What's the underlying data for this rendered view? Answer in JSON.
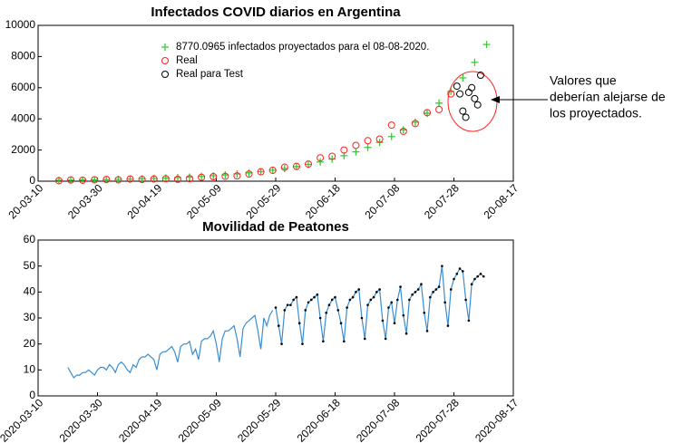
{
  "chart_data": [
    {
      "type": "scatter",
      "title": "Infectados COVID diarios en Argentina",
      "xlim": [
        "2020-03-10",
        "2020-08-17"
      ],
      "xticks": [
        {
          "value": "2020-03-10",
          "label": "20-03-10"
        },
        {
          "value": "2020-03-30",
          "label": "20-03-30"
        },
        {
          "value": "2020-04-19",
          "label": "20-04-19"
        },
        {
          "value": "2020-05-09",
          "label": "20-05-09"
        },
        {
          "value": "2020-05-29",
          "label": "20-05-29"
        },
        {
          "value": "2020-06-18",
          "label": "20-06-18"
        },
        {
          "value": "2020-07-08",
          "label": "20-07-08"
        },
        {
          "value": "2020-07-28",
          "label": "20-07-28"
        },
        {
          "value": "2020-08-17",
          "label": "20-08-17"
        }
      ],
      "ylim": [
        0,
        10000
      ],
      "yticks": [
        0,
        2000,
        4000,
        6000,
        8000,
        10000
      ],
      "series": [
        {
          "name": "8770.0965 infectados proyectados para el 08-08-2020.",
          "color": "#33cc33",
          "marker": "+",
          "x": [
            "2020-03-17",
            "2020-03-21",
            "2020-03-25",
            "2020-03-29",
            "2020-04-02",
            "2020-04-06",
            "2020-04-10",
            "2020-04-14",
            "2020-04-18",
            "2020-04-22",
            "2020-04-26",
            "2020-04-30",
            "2020-05-04",
            "2020-05-08",
            "2020-05-12",
            "2020-05-16",
            "2020-05-20",
            "2020-05-24",
            "2020-05-28",
            "2020-06-01",
            "2020-06-05",
            "2020-06-09",
            "2020-06-13",
            "2020-06-17",
            "2020-06-21",
            "2020-06-25",
            "2020-06-29",
            "2020-07-03",
            "2020-07-07",
            "2020-07-11",
            "2020-07-15",
            "2020-07-19",
            "2020-07-23",
            "2020-07-27",
            "2020-07-31",
            "2020-08-04",
            "2020-08-08"
          ],
          "values": [
            57,
            66,
            75,
            87,
            100,
            115,
            132,
            152,
            174,
            201,
            231,
            265,
            305,
            351,
            404,
            464,
            534,
            614,
            707,
            813,
            935,
            1075,
            1236,
            1422,
            1636,
            1881,
            2164,
            2489,
            2863,
            3293,
            3788,
            4356,
            5011,
            5763,
            6629,
            7625,
            8770.0965
          ]
        },
        {
          "name": "Real",
          "color": "#ff2020",
          "marker": "o",
          "x": [
            "2020-03-17",
            "2020-03-21",
            "2020-03-25",
            "2020-03-29",
            "2020-04-02",
            "2020-04-06",
            "2020-04-10",
            "2020-04-14",
            "2020-04-18",
            "2020-04-22",
            "2020-04-26",
            "2020-04-30",
            "2020-05-04",
            "2020-05-08",
            "2020-05-12",
            "2020-05-16",
            "2020-05-20",
            "2020-05-24",
            "2020-05-28",
            "2020-06-01",
            "2020-06-05",
            "2020-06-09",
            "2020-06-13",
            "2020-06-17",
            "2020-06-21",
            "2020-06-25",
            "2020-06-29",
            "2020-07-03",
            "2020-07-07",
            "2020-07-11",
            "2020-07-15",
            "2020-07-19",
            "2020-07-23",
            "2020-07-27"
          ],
          "values": [
            30,
            80,
            60,
            90,
            110,
            90,
            140,
            110,
            140,
            150,
            120,
            160,
            250,
            290,
            310,
            340,
            460,
            600,
            700,
            900,
            950,
            1100,
            1500,
            1600,
            2000,
            2300,
            2600,
            2700,
            3600,
            3200,
            3700,
            4400,
            4600,
            5600
          ]
        },
        {
          "name": "Real para Test",
          "color": "#000000",
          "marker": "o",
          "x": [
            "2020-07-29",
            "2020-07-30",
            "2020-07-31",
            "2020-08-01",
            "2020-08-02",
            "2020-08-03",
            "2020-08-04",
            "2020-08-05",
            "2020-08-06"
          ],
          "values": [
            6100,
            5600,
            4500,
            4100,
            5700,
            6000,
            5300,
            4900,
            6800
          ]
        }
      ],
      "annotation": [
        "Valores que",
        "deberían alejarse de",
        "los proyectados."
      ]
    },
    {
      "type": "line",
      "title": "Movilidad de Peatones",
      "xlim": [
        "2020-03-10",
        "2020-08-17"
      ],
      "xticks": [
        "2020-03-10",
        "2020-03-30",
        "2020-04-19",
        "2020-05-09",
        "2020-05-29",
        "2020-06-18",
        "2020-07-08",
        "2020-07-28",
        "2020-08-17"
      ],
      "ylim": [
        0,
        60
      ],
      "yticks": [
        0,
        10,
        20,
        30,
        40,
        50,
        60
      ],
      "series": [
        {
          "color": "#3a8ed0",
          "x": [
            "2020-03-20",
            "2020-03-21",
            "2020-03-22",
            "2020-03-23",
            "2020-03-24",
            "2020-03-25",
            "2020-03-26",
            "2020-03-27",
            "2020-03-28",
            "2020-03-29",
            "2020-03-30",
            "2020-03-31",
            "2020-04-01",
            "2020-04-02",
            "2020-04-03",
            "2020-04-04",
            "2020-04-05",
            "2020-04-06",
            "2020-04-07",
            "2020-04-08",
            "2020-04-09",
            "2020-04-10",
            "2020-04-11",
            "2020-04-12",
            "2020-04-13",
            "2020-04-14",
            "2020-04-15",
            "2020-04-16",
            "2020-04-17",
            "2020-04-18",
            "2020-04-19",
            "2020-04-20",
            "2020-04-21",
            "2020-04-22",
            "2020-04-23",
            "2020-04-24",
            "2020-04-25",
            "2020-04-26",
            "2020-04-27",
            "2020-04-28",
            "2020-04-29",
            "2020-04-30",
            "2020-05-01",
            "2020-05-02",
            "2020-05-03",
            "2020-05-04",
            "2020-05-05",
            "2020-05-06",
            "2020-05-07",
            "2020-05-08",
            "2020-05-09",
            "2020-05-10",
            "2020-05-11",
            "2020-05-12",
            "2020-05-13",
            "2020-05-14",
            "2020-05-15",
            "2020-05-16",
            "2020-05-17",
            "2020-05-18",
            "2020-05-19",
            "2020-05-20",
            "2020-05-21",
            "2020-05-22",
            "2020-05-23",
            "2020-05-24",
            "2020-05-25",
            "2020-05-26",
            "2020-05-27",
            "2020-05-28"
          ],
          "values": [
            11,
            9,
            7,
            8,
            8,
            9,
            9,
            10,
            9,
            8,
            10,
            11,
            11,
            10,
            12,
            11,
            9,
            12,
            13,
            12,
            10,
            9,
            12,
            11,
            14,
            15,
            15,
            16,
            15,
            14,
            10,
            16,
            17,
            17,
            18,
            19,
            17,
            13,
            19,
            20,
            20,
            21,
            16,
            18,
            14,
            21,
            22,
            22,
            23,
            25,
            20,
            13,
            22,
            25,
            25,
            26,
            27,
            22,
            15,
            26,
            28,
            29,
            30,
            31,
            25,
            18,
            30,
            27,
            31,
            33
          ]
        },
        {
          "color": "#3a8ed0",
          "marker_color": "#000000",
          "x": [
            "2020-05-29",
            "2020-05-30",
            "2020-05-31",
            "2020-06-01",
            "2020-06-02",
            "2020-06-03",
            "2020-06-04",
            "2020-06-05",
            "2020-06-06",
            "2020-06-07",
            "2020-06-08",
            "2020-06-09",
            "2020-06-10",
            "2020-06-11",
            "2020-06-12",
            "2020-06-13",
            "2020-06-14",
            "2020-06-15",
            "2020-06-16",
            "2020-06-17",
            "2020-06-18",
            "2020-06-19",
            "2020-06-20",
            "2020-06-21",
            "2020-06-22",
            "2020-06-23",
            "2020-06-24",
            "2020-06-25",
            "2020-06-26",
            "2020-06-27",
            "2020-06-28",
            "2020-06-29",
            "2020-06-30",
            "2020-07-01",
            "2020-07-02",
            "2020-07-03",
            "2020-07-04",
            "2020-07-05",
            "2020-07-06",
            "2020-07-07",
            "2020-07-08",
            "2020-07-09",
            "2020-07-10",
            "2020-07-11",
            "2020-07-12",
            "2020-07-13",
            "2020-07-14",
            "2020-07-15",
            "2020-07-16",
            "2020-07-17",
            "2020-07-18",
            "2020-07-19",
            "2020-07-20",
            "2020-07-21",
            "2020-07-22",
            "2020-07-23",
            "2020-07-24",
            "2020-07-25",
            "2020-07-26",
            "2020-07-27",
            "2020-07-28",
            "2020-07-29",
            "2020-07-30",
            "2020-07-31",
            "2020-08-01",
            "2020-08-02",
            "2020-08-03",
            "2020-08-04",
            "2020-08-05",
            "2020-08-06",
            "2020-08-07"
          ],
          "values": [
            34,
            27,
            20,
            33,
            35,
            35,
            37,
            38,
            28,
            20,
            33,
            36,
            37,
            38,
            39,
            30,
            21,
            32,
            35,
            37,
            38,
            33,
            28,
            21,
            34,
            37,
            38,
            40,
            41,
            30,
            22,
            35,
            37,
            38,
            40,
            41,
            29,
            22,
            34,
            36,
            28,
            37,
            42,
            31,
            24,
            37,
            39,
            40,
            41,
            43,
            32,
            25,
            38,
            40,
            41,
            42,
            50,
            36,
            27,
            41,
            45,
            47,
            49,
            48,
            37,
            29,
            43,
            45,
            46,
            47,
            46
          ]
        }
      ]
    }
  ]
}
